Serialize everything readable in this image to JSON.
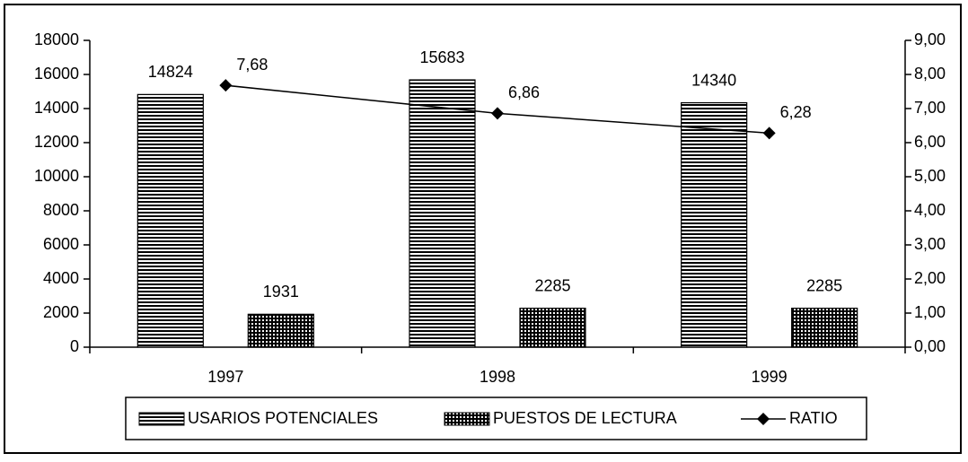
{
  "chart_data": {
    "type": "bar",
    "categories": [
      "1997",
      "1998",
      "1999"
    ],
    "series": [
      {
        "name": "USARIOS POTENCIALES",
        "color": "#000000",
        "pattern": "hlines",
        "values": [
          14824,
          15683,
          14340
        ]
      },
      {
        "name": "PUESTOS DE LECTURA",
        "color": "#000000",
        "pattern": "dots",
        "values": [
          1931,
          2285,
          2285
        ]
      },
      {
        "name": "RATIO",
        "type": "line",
        "axis": "y2",
        "color": "#000000",
        "marker": "diamond",
        "values": [
          7.68,
          6.86,
          6.28
        ],
        "value_labels": [
          "7,68",
          "6,86",
          "6,28"
        ]
      }
    ],
    "ylim": [
      0,
      18000
    ],
    "yticks": [
      0,
      2000,
      4000,
      6000,
      8000,
      10000,
      12000,
      14000,
      16000,
      18000
    ],
    "y2lim": [
      0,
      9
    ],
    "y2ticks": [
      {
        "value": 0,
        "label": "0,00"
      },
      {
        "value": 1,
        "label": "1,00"
      },
      {
        "value": 2,
        "label": "2,00"
      },
      {
        "value": 3,
        "label": "3,00"
      },
      {
        "value": 4,
        "label": "4,00"
      },
      {
        "value": 5,
        "label": "5,00"
      },
      {
        "value": 6,
        "label": "6,00"
      },
      {
        "value": 7,
        "label": "7,00"
      },
      {
        "value": 8,
        "label": "8,00"
      },
      {
        "value": 9,
        "label": "9,00"
      }
    ],
    "grid": false,
    "legend": "bottom"
  }
}
